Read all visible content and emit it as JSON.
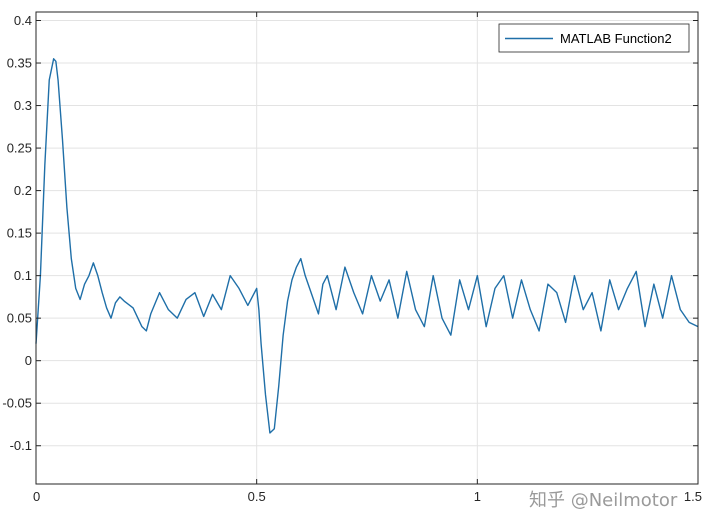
{
  "watermark": "知乎 @Neilmotor",
  "chart_data": {
    "type": "line",
    "title": "",
    "xlabel": "",
    "ylabel": "",
    "xlim": [
      0,
      1.5
    ],
    "ylim": [
      -0.145,
      0.41
    ],
    "grid": true,
    "legend_placement": "top-right",
    "x_ticks": [
      0,
      0.5,
      1,
      1.5
    ],
    "x_tick_labels": [
      "0",
      "0.5",
      "1",
      "1.5"
    ],
    "y_ticks": [
      -0.1,
      -0.05,
      0,
      0.05,
      0.1,
      0.15,
      0.2,
      0.25,
      0.3,
      0.35,
      0.4
    ],
    "y_tick_labels": [
      "-0.1",
      "-0.05",
      "0",
      "0.05",
      "0.1",
      "0.15",
      "0.2",
      "0.25",
      "0.3",
      "0.35",
      "0.4"
    ],
    "series": [
      {
        "name": "MATLAB Function2",
        "color": "#1f6fa8",
        "x": [
          0,
          0.01,
          0.02,
          0.03,
          0.04,
          0.045,
          0.05,
          0.06,
          0.07,
          0.08,
          0.09,
          0.1,
          0.11,
          0.12,
          0.13,
          0.14,
          0.15,
          0.16,
          0.17,
          0.18,
          0.19,
          0.2,
          0.22,
          0.24,
          0.25,
          0.26,
          0.28,
          0.3,
          0.32,
          0.34,
          0.36,
          0.38,
          0.4,
          0.42,
          0.44,
          0.46,
          0.48,
          0.5,
          0.505,
          0.51,
          0.52,
          0.53,
          0.54,
          0.55,
          0.56,
          0.57,
          0.58,
          0.59,
          0.6,
          0.61,
          0.62,
          0.63,
          0.64,
          0.65,
          0.66,
          0.68,
          0.7,
          0.72,
          0.74,
          0.76,
          0.78,
          0.8,
          0.82,
          0.84,
          0.86,
          0.88,
          0.9,
          0.92,
          0.94,
          0.96,
          0.98,
          1.0,
          1.02,
          1.04,
          1.06,
          1.08,
          1.1,
          1.12,
          1.14,
          1.16,
          1.18,
          1.2,
          1.22,
          1.24,
          1.26,
          1.28,
          1.3,
          1.32,
          1.34,
          1.36,
          1.38,
          1.4,
          1.42,
          1.44,
          1.46,
          1.48,
          1.5
        ],
        "y": [
          0.02,
          0.1,
          0.23,
          0.33,
          0.355,
          0.352,
          0.33,
          0.26,
          0.18,
          0.12,
          0.085,
          0.072,
          0.09,
          0.1,
          0.115,
          0.1,
          0.08,
          0.062,
          0.05,
          0.068,
          0.075,
          0.07,
          0.062,
          0.04,
          0.035,
          0.055,
          0.08,
          0.06,
          0.05,
          0.072,
          0.08,
          0.052,
          0.078,
          0.06,
          0.1,
          0.085,
          0.065,
          0.085,
          0.06,
          0.02,
          -0.04,
          -0.085,
          -0.08,
          -0.03,
          0.03,
          0.07,
          0.095,
          0.11,
          0.12,
          0.1,
          0.085,
          0.07,
          0.055,
          0.09,
          0.1,
          0.06,
          0.11,
          0.08,
          0.055,
          0.1,
          0.07,
          0.095,
          0.05,
          0.105,
          0.06,
          0.04,
          0.1,
          0.05,
          0.03,
          0.095,
          0.06,
          0.1,
          0.04,
          0.085,
          0.1,
          0.05,
          0.095,
          0.06,
          0.035,
          0.09,
          0.08,
          0.045,
          0.1,
          0.06,
          0.08,
          0.035,
          0.095,
          0.06,
          0.085,
          0.105,
          0.04,
          0.09,
          0.05,
          0.1,
          0.06,
          0.045,
          0.04
        ]
      }
    ]
  }
}
